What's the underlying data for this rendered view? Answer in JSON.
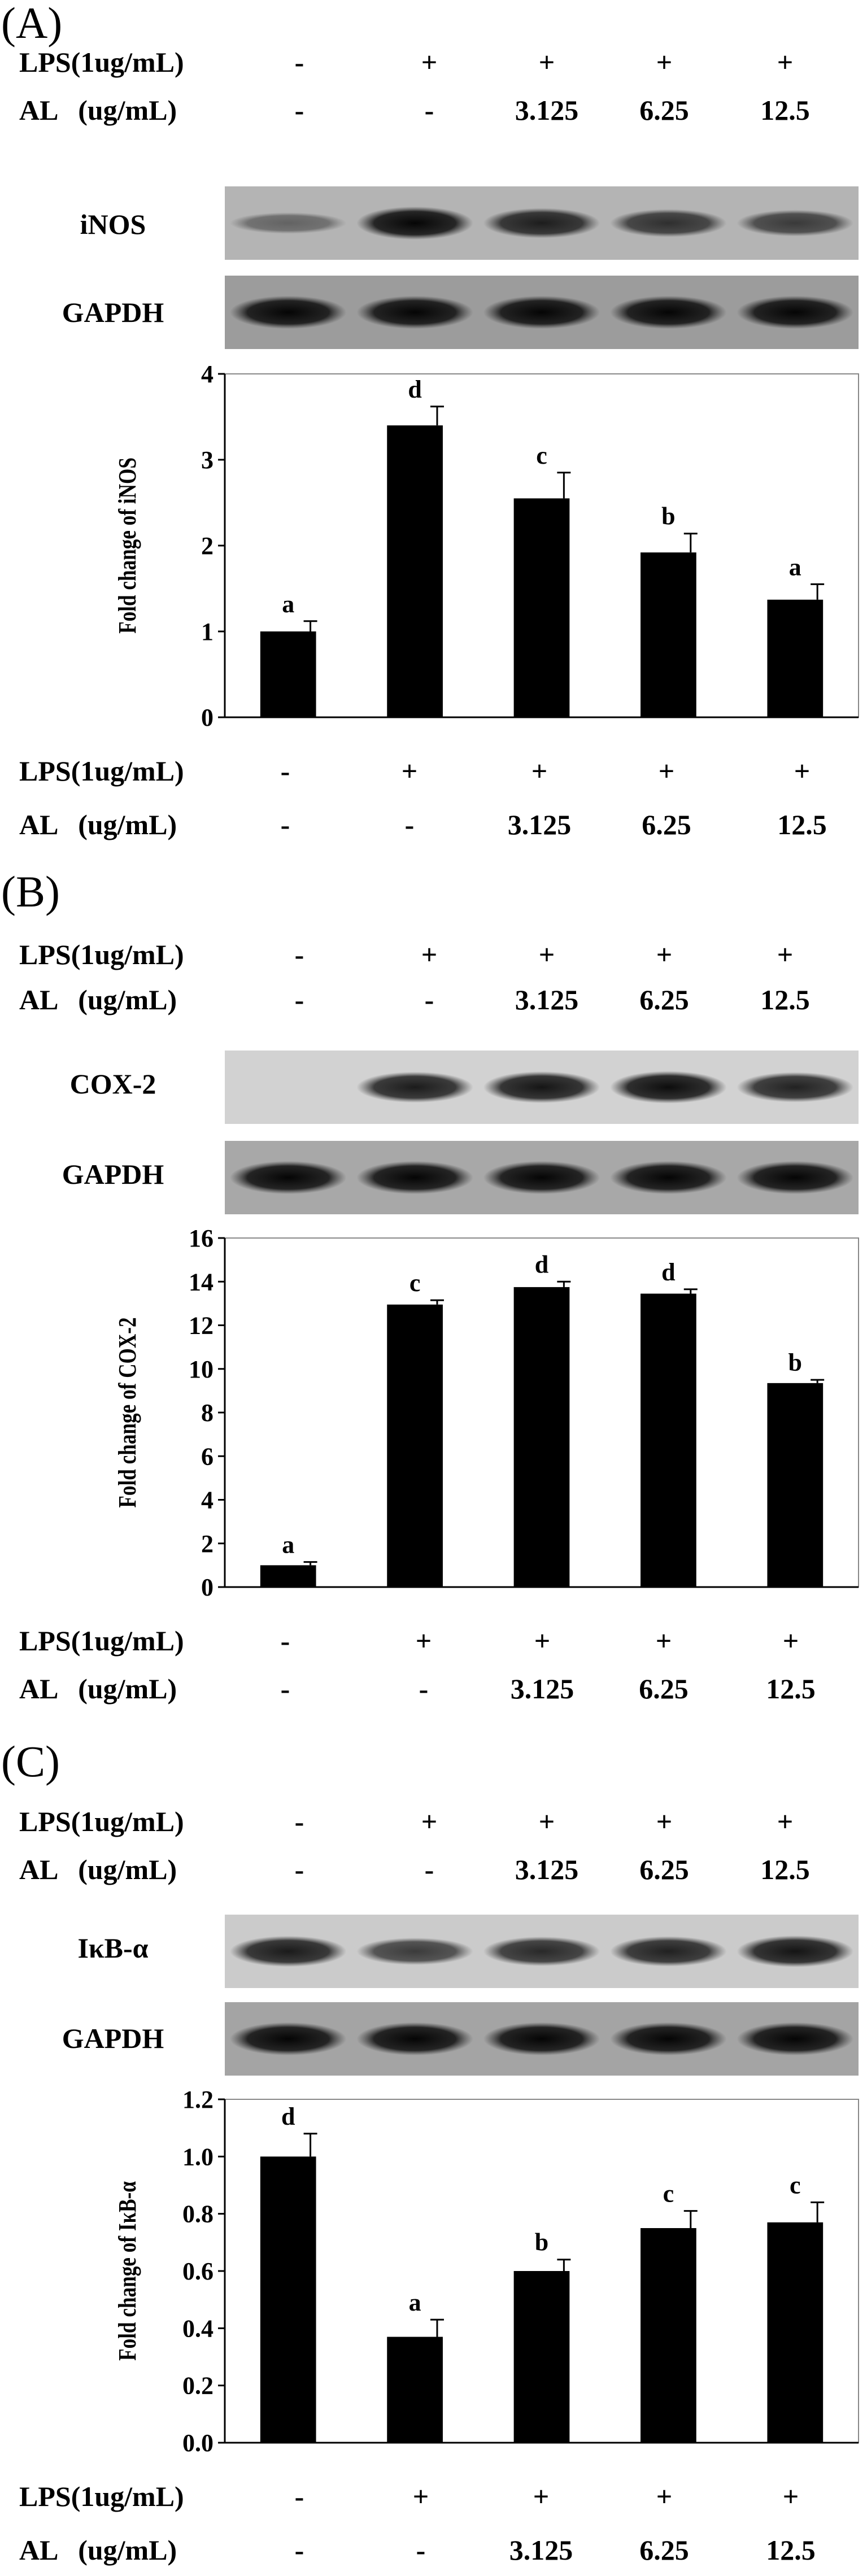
{
  "panels": [
    {
      "label": "(A)",
      "treatments": {
        "lps_label": "LPS(1ug/mL)",
        "al_label": "AL   (ug/mL)",
        "lps": [
          "-",
          "+",
          "+",
          "+",
          "+"
        ],
        "al": [
          "-",
          "-",
          "3.125",
          "6.25",
          "12.5"
        ]
      },
      "blots": [
        {
          "name": "iNOS",
          "bands": [
            0.15,
            0.95,
            0.75,
            0.6,
            0.5
          ],
          "bg": "#b4b4b4"
        },
        {
          "name": "GAPDH",
          "bands": [
            0.95,
            0.95,
            0.95,
            0.95,
            0.95
          ],
          "bg": "#9c9c9c"
        }
      ],
      "chart_data": {
        "type": "bar",
        "categories": [
          "1",
          "2",
          "3",
          "4",
          "5"
        ],
        "values": [
          1.0,
          3.4,
          2.55,
          1.92,
          1.37
        ],
        "errors": [
          0.12,
          0.22,
          0.3,
          0.22,
          0.18
        ],
        "letters": [
          "a",
          "d",
          "c",
          "b",
          "a"
        ],
        "ylabel": "Fold change of iNOS",
        "ylim": [
          0,
          4
        ],
        "yticks": [
          "0",
          "1",
          "2",
          "3",
          "4"
        ],
        "ytick_values": [
          0,
          1,
          2,
          3,
          4
        ],
        "grid": false
      }
    },
    {
      "label": "(B)",
      "treatments": {
        "lps_label": "LPS(1ug/mL)",
        "al_label": "AL   (ug/mL)",
        "lps": [
          "-",
          "+",
          "+",
          "+",
          "+"
        ],
        "al": [
          "-",
          "-",
          "3.125",
          "6.25",
          "12.5"
        ]
      },
      "blots": [
        {
          "name": "COX-2",
          "bands": [
            0.0,
            0.8,
            0.85,
            0.9,
            0.75
          ],
          "bg": "#d2d2d2"
        },
        {
          "name": "GAPDH",
          "bands": [
            0.95,
            0.95,
            0.95,
            0.95,
            0.95
          ],
          "bg": "#a8a8a8"
        }
      ],
      "chart_data": {
        "type": "bar",
        "categories": [
          "1",
          "2",
          "3",
          "4",
          "5"
        ],
        "values": [
          1.0,
          12.95,
          13.75,
          13.45,
          9.35
        ],
        "errors": [
          0.15,
          0.2,
          0.25,
          0.2,
          0.15
        ],
        "letters": [
          "a",
          "c",
          "d",
          "d",
          "b"
        ],
        "ylabel": "Fold change of COX-2",
        "ylim": [
          0,
          16
        ],
        "yticks": [
          "0",
          "2",
          "4",
          "6",
          "8",
          "10",
          "12",
          "14",
          "16"
        ],
        "ytick_values": [
          0,
          2,
          4,
          6,
          8,
          10,
          12,
          14,
          16
        ],
        "grid": false
      }
    },
    {
      "label": "(C)",
      "treatments": {
        "lps_label": "LPS(1ug/mL)",
        "al_label": "AL   (ug/mL)",
        "lps": [
          "-",
          "+",
          "+",
          "+",
          "+"
        ],
        "al": [
          "-",
          "-",
          "3.125",
          "6.25",
          "12.5"
        ]
      },
      "blots": [
        {
          "name": "IκB-α",
          "bands": [
            0.8,
            0.55,
            0.7,
            0.75,
            0.85
          ],
          "bg": "#cbcbcb"
        },
        {
          "name": "GAPDH",
          "bands": [
            0.95,
            0.95,
            0.95,
            0.95,
            0.95
          ],
          "bg": "#a4a4a4"
        }
      ],
      "chart_data": {
        "type": "bar",
        "categories": [
          "1",
          "2",
          "3",
          "4",
          "5"
        ],
        "values": [
          1.0,
          0.37,
          0.6,
          0.75,
          0.77
        ],
        "errors": [
          0.08,
          0.06,
          0.04,
          0.06,
          0.07
        ],
        "letters": [
          "d",
          "a",
          "b",
          "c",
          "c"
        ],
        "ylabel": "Fold change of IκB-α",
        "ylim": [
          0,
          1.2
        ],
        "yticks": [
          "0.0",
          "0.2",
          "0.4",
          "0.6",
          "0.8",
          "1.0",
          "1.2"
        ],
        "ytick_values": [
          0,
          0.2,
          0.4,
          0.6,
          0.8,
          1.0,
          1.2
        ],
        "grid": false
      }
    }
  ]
}
